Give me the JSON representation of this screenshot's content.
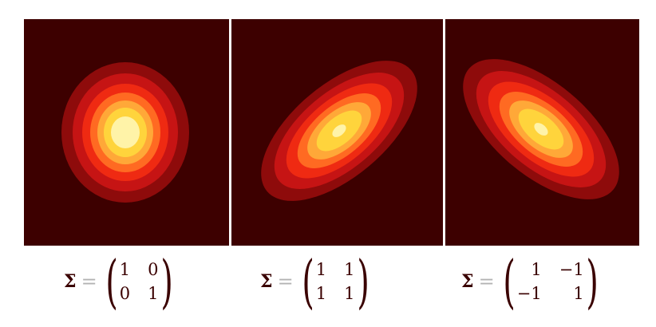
{
  "colors": {
    "background": "#3d0000",
    "levels": [
      "#8e0b0b",
      "#c61414",
      "#ef2a12",
      "#ff6a22",
      "#ffa838",
      "#ffd43c",
      "#fff3a8"
    ]
  },
  "panels": [
    {
      "id": "panel-1",
      "formula": {
        "symbol": "Σ",
        "equals": "=",
        "matrix": [
          [
            "1",
            "0"
          ],
          [
            "0",
            "1"
          ]
        ]
      }
    },
    {
      "id": "panel-2",
      "formula": {
        "symbol": "Σ",
        "equals": "=",
        "matrix": [
          [
            "1",
            "1"
          ],
          [
            "1",
            "1"
          ]
        ]
      }
    },
    {
      "id": "panel-3",
      "formula": {
        "symbol": "Σ",
        "equals": "=",
        "matrix": [
          [
            "1",
            "−1"
          ],
          [
            "−1",
            "1"
          ]
        ]
      }
    }
  ]
}
